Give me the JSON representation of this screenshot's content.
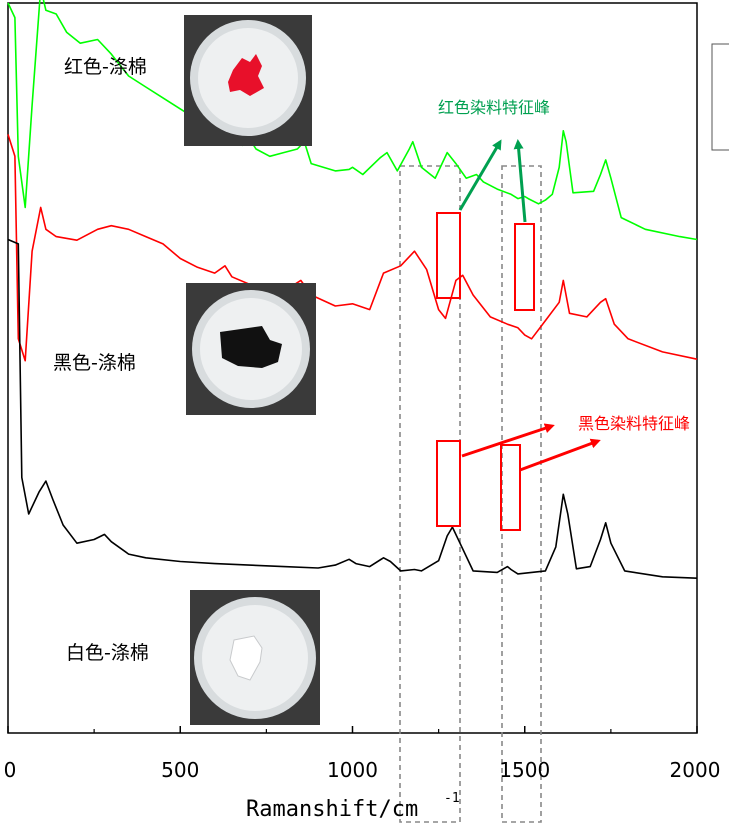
{
  "chart_data": {
    "type": "line",
    "xlabel": "Ramanshift/cm",
    "xlabel_sup": "-1",
    "xlim": [
      0,
      2000
    ],
    "xticks": [
      "0",
      "500",
      "1000",
      "1500",
      "2000"
    ],
    "grid": false,
    "series": [
      {
        "name": "红色-涤棉",
        "color": "#00ff00",
        "points": [
          [
            0,
            1000
          ],
          [
            20,
            980
          ],
          [
            30,
            790
          ],
          [
            50,
            720
          ],
          [
            70,
            860
          ],
          [
            95,
            1020
          ],
          [
            110,
            990
          ],
          [
            140,
            985
          ],
          [
            170,
            960
          ],
          [
            210,
            945
          ],
          [
            260,
            950
          ],
          [
            300,
            930
          ],
          [
            350,
            900
          ],
          [
            400,
            885
          ],
          [
            450,
            870
          ],
          [
            500,
            855
          ],
          [
            550,
            840
          ],
          [
            600,
            830
          ],
          [
            630,
            845
          ],
          [
            650,
            820
          ],
          [
            680,
            805
          ],
          [
            700,
            815
          ],
          [
            720,
            800
          ],
          [
            760,
            790
          ],
          [
            800,
            795
          ],
          [
            840,
            800
          ],
          [
            860,
            810
          ],
          [
            880,
            780
          ],
          [
            950,
            770
          ],
          [
            990,
            772
          ],
          [
            1000,
            775
          ],
          [
            1030,
            765
          ],
          [
            1080,
            788
          ],
          [
            1100,
            795
          ],
          [
            1130,
            770
          ],
          [
            1165,
            800
          ],
          [
            1175,
            810
          ],
          [
            1200,
            775
          ],
          [
            1240,
            760
          ],
          [
            1275,
            795
          ],
          [
            1300,
            780
          ],
          [
            1330,
            760
          ],
          [
            1360,
            765
          ],
          [
            1380,
            755
          ],
          [
            1420,
            745
          ],
          [
            1460,
            738
          ],
          [
            1480,
            732
          ],
          [
            1500,
            735
          ],
          [
            1510,
            732
          ],
          [
            1540,
            725
          ],
          [
            1560,
            730
          ],
          [
            1580,
            738
          ],
          [
            1600,
            775
          ],
          [
            1612,
            825
          ],
          [
            1620,
            810
          ],
          [
            1640,
            740
          ],
          [
            1700,
            742
          ],
          [
            1720,
            765
          ],
          [
            1735,
            785
          ],
          [
            1750,
            760
          ],
          [
            1780,
            706
          ],
          [
            1850,
            690
          ],
          [
            1950,
            680
          ],
          [
            2000,
            676
          ]
        ]
      },
      {
        "name": "黑色-涤棉",
        "color": "#ff0000",
        "points": [
          [
            0,
            820
          ],
          [
            20,
            790
          ],
          [
            30,
            540
          ],
          [
            50,
            510
          ],
          [
            70,
            660
          ],
          [
            95,
            720
          ],
          [
            110,
            690
          ],
          [
            140,
            680
          ],
          [
            200,
            675
          ],
          [
            260,
            690
          ],
          [
            300,
            695
          ],
          [
            350,
            690
          ],
          [
            400,
            680
          ],
          [
            450,
            670
          ],
          [
            500,
            650
          ],
          [
            550,
            638
          ],
          [
            600,
            630
          ],
          [
            630,
            640
          ],
          [
            650,
            625
          ],
          [
            700,
            615
          ],
          [
            760,
            610
          ],
          [
            800,
            605
          ],
          [
            850,
            620
          ],
          [
            880,
            600
          ],
          [
            950,
            585
          ],
          [
            1000,
            588
          ],
          [
            1050,
            580
          ],
          [
            1090,
            630
          ],
          [
            1140,
            640
          ],
          [
            1180,
            660
          ],
          [
            1215,
            635
          ],
          [
            1250,
            580
          ],
          [
            1270,
            568
          ],
          [
            1300,
            620
          ],
          [
            1320,
            627
          ],
          [
            1350,
            600
          ],
          [
            1400,
            570
          ],
          [
            1450,
            560
          ],
          [
            1480,
            555
          ],
          [
            1500,
            545
          ],
          [
            1520,
            540
          ],
          [
            1560,
            565
          ],
          [
            1600,
            590
          ],
          [
            1612,
            620
          ],
          [
            1630,
            575
          ],
          [
            1680,
            570
          ],
          [
            1720,
            590
          ],
          [
            1735,
            595
          ],
          [
            1760,
            560
          ],
          [
            1800,
            540
          ],
          [
            1900,
            522
          ],
          [
            2000,
            512
          ]
        ]
      },
      {
        "name": "白色-涤棉",
        "color": "#000000",
        "points": [
          [
            0,
            676
          ],
          [
            30,
            670
          ],
          [
            40,
            350
          ],
          [
            60,
            300
          ],
          [
            90,
            330
          ],
          [
            110,
            345
          ],
          [
            130,
            320
          ],
          [
            160,
            285
          ],
          [
            200,
            260
          ],
          [
            250,
            265
          ],
          [
            280,
            272
          ],
          [
            300,
            262
          ],
          [
            350,
            245
          ],
          [
            400,
            240
          ],
          [
            500,
            235
          ],
          [
            600,
            232
          ],
          [
            700,
            230
          ],
          [
            800,
            228
          ],
          [
            900,
            226
          ],
          [
            950,
            230
          ],
          [
            990,
            238
          ],
          [
            1010,
            232
          ],
          [
            1050,
            228
          ],
          [
            1090,
            240
          ],
          [
            1110,
            235
          ],
          [
            1140,
            222
          ],
          [
            1180,
            224
          ],
          [
            1200,
            222
          ],
          [
            1250,
            236
          ],
          [
            1275,
            270
          ],
          [
            1290,
            282
          ],
          [
            1310,
            262
          ],
          [
            1350,
            222
          ],
          [
            1420,
            220
          ],
          [
            1450,
            228
          ],
          [
            1460,
            224
          ],
          [
            1480,
            218
          ],
          [
            1520,
            220
          ],
          [
            1560,
            222
          ],
          [
            1590,
            255
          ],
          [
            1612,
            327
          ],
          [
            1625,
            300
          ],
          [
            1650,
            225
          ],
          [
            1690,
            228
          ],
          [
            1720,
            265
          ],
          [
            1735,
            288
          ],
          [
            1750,
            260
          ],
          [
            1790,
            222
          ],
          [
            1900,
            214
          ],
          [
            2000,
            212
          ]
        ]
      }
    ],
    "annotations": [
      {
        "text": "红色染料特征峰",
        "color": "#00a050"
      },
      {
        "text": "黑色染料特征峰",
        "color": "#ff0000"
      }
    ],
    "inset_images": [
      "red-sample-photo",
      "black-sample-photo",
      "white-sample-photo"
    ]
  }
}
